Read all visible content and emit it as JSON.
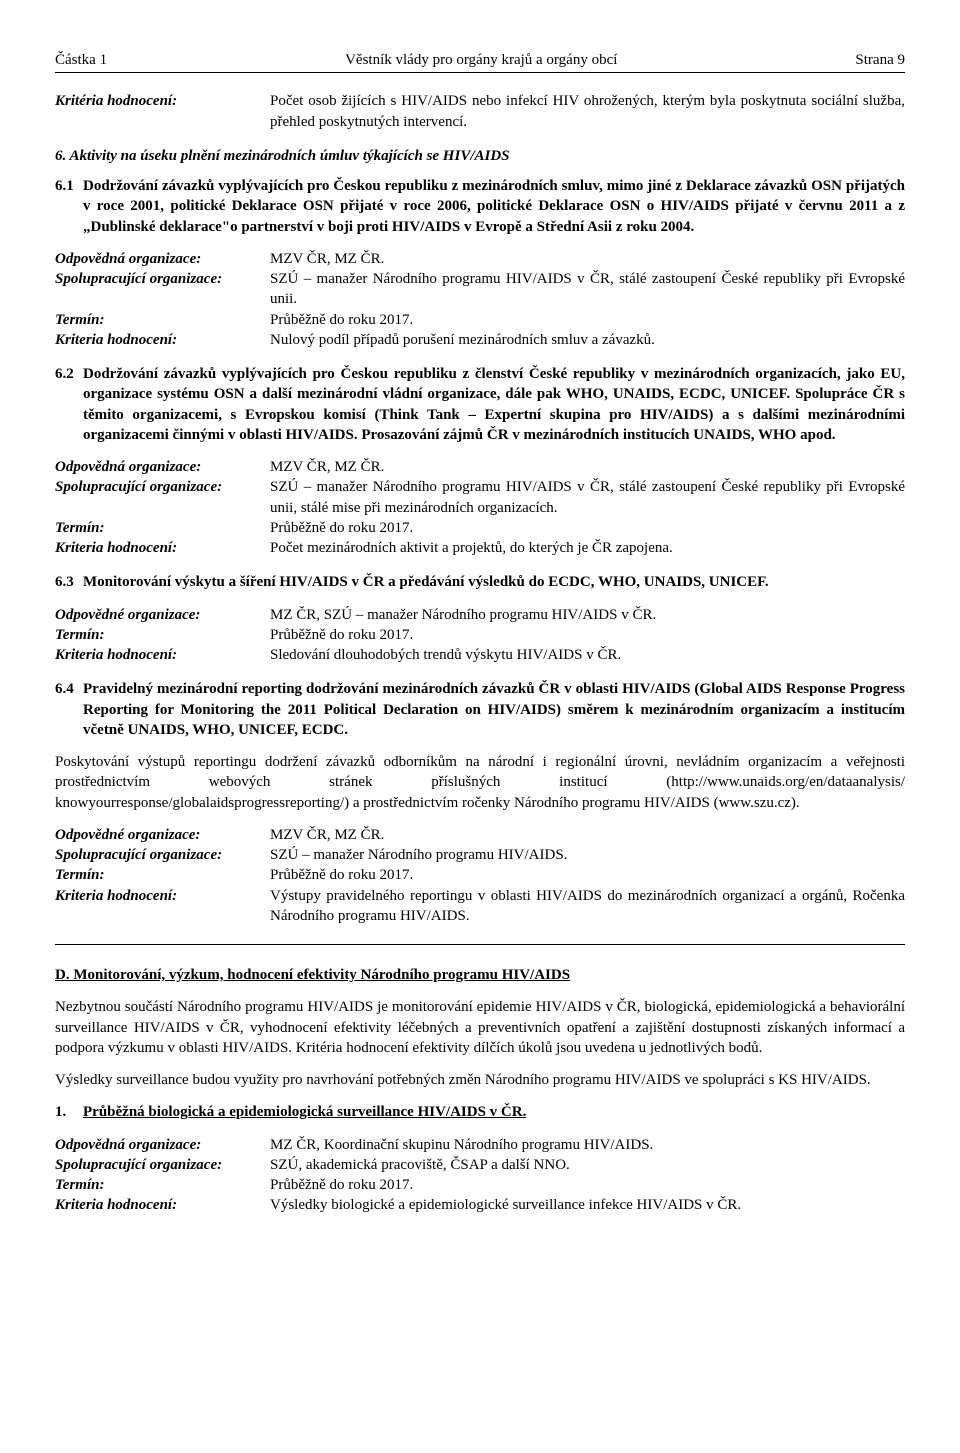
{
  "header": {
    "left": "Částka 1",
    "center": "Věstník vlády pro orgány krajů a orgány obcí",
    "right": "Strana 9"
  },
  "topKV": {
    "label": "Kritéria hodnocení:",
    "value": "Počet osob žijících s HIV/AIDS nebo infekcí HIV ohrožených, kterým byla poskytnuta sociální služba, přehled poskytnutých intervencí."
  },
  "sec6": {
    "title": "6. Aktivity na úseku plnění mezinárodních úmluv týkajících se HIV/AIDS"
  },
  "p61": {
    "num": "6.1",
    "text": "Dodržování závazků vyplývajících pro Českou republiku z mezinárodních smluv, mimo jiné z Deklarace závazků OSN přijatých v roce 2001, politické Deklarace OSN přijaté v roce 2006, politické Deklarace OSN o HIV/AIDS přijaté v červnu 2011 a z „Dublinské deklarace\"o partnerství v boji proti HIV/AIDS v Evropě a Střední Asii z roku 2004."
  },
  "kv61": {
    "r1l": "Odpovědná organizace:",
    "r1v": "MZV ČR, MZ ČR.",
    "r2l": "Spolupracující organizace:",
    "r2v": "SZÚ – manažer Národního programu HIV/AIDS v ČR, stálé zastoupení České republiky při Evropské unii.",
    "r3l": "Termín:",
    "r3v": "Průběžně do roku 2017.",
    "r4l": "Kriteria hodnocení:",
    "r4v": "Nulový podíl případů porušení mezinárodních smluv a závazků."
  },
  "p62": {
    "num": "6.2",
    "text": "Dodržování závazků vyplývajících pro Českou republiku z členství České republiky v mezinárodních organizacích, jako EU, organizace systému OSN a další mezinárodní vládní organizace, dále pak WHO, UNAIDS, ECDC, UNICEF. Spolupráce ČR s těmito organizacemi, s Evropskou komisí (Think Tank – Expertní skupina pro HIV/AIDS) a s dalšími mezinárodními organizacemi činnými v oblasti HIV/AIDS. Prosazování zájmů ČR v mezinárodních institucích UNAIDS, WHO apod."
  },
  "kv62": {
    "r1l": "Odpovědná organizace:",
    "r1v": "MZV ČR, MZ ČR.",
    "r2l": "Spolupracující organizace:",
    "r2v": "SZÚ – manažer Národního programu HIV/AIDS v ČR, stálé zastoupení České republiky při Evropské unii, stálé mise při mezinárodních organizacích.",
    "r3l": "Termín:",
    "r3v": "Průběžně do roku 2017.",
    "r4l": "Kriteria hodnocení:",
    "r4v": "Počet mezinárodních aktivit a projektů, do kterých je ČR zapojena."
  },
  "p63": {
    "num": "6.3",
    "text": "Monitorování výskytu a šíření HIV/AIDS v ČR a předávání výsledků do ECDC, WHO, UNAIDS, UNICEF."
  },
  "kv63": {
    "r1l": "Odpovědné organizace:",
    "r1v": "MZ ČR, SZÚ – manažer Národního programu HIV/AIDS v ČR.",
    "r2l": "Termín:",
    "r2v": "Průběžně do roku 2017.",
    "r3l": "Kriteria hodnocení:",
    "r3v": "Sledování dlouhodobých trendů výskytu HIV/AIDS v ČR."
  },
  "p64": {
    "num": "6.4",
    "text": "Pravidelný mezinárodní reporting dodržování mezinárodních závazků ČR v oblasti HIV/AIDS (Global AIDS Response Progress Reporting for Monitoring the 2011 Political Declaration on HIV/AIDS) směrem k mezinárodním organizacím a institucím včetně UNAIDS, WHO, UNICEF, ECDC."
  },
  "p64body": "Poskytování výstupů reportingu dodržení závazků odborníkům na národní i regionální úrovni, nevládním organizacím a veřejnosti prostřednictvím webových stránek příslušných institucí (http://www.unaids.org/en/dataanalysis/ knowyourresponse/globalaidsprogressreporting/) a prostřednictvím ročenky Národního programu HIV/AIDS (www.szu.cz).",
  "kv64": {
    "r1l": "Odpovědné organizace:",
    "r1v": "MZV ČR, MZ ČR.",
    "r2l": "Spolupracující organizace:",
    "r2v": "SZÚ – manažer Národního programu HIV/AIDS.",
    "r3l": "Termín:",
    "r3v": "Průběžně do roku 2017.",
    "r4l": "Kriteria hodnocení:",
    "r4v": "Výstupy pravidelného reportingu v oblasti HIV/AIDS do mezinárodních organizací a orgánů, Ročenka Národního programu HIV/AIDS."
  },
  "secD": {
    "title": "D. Monitorování, výzkum, hodnocení efektivity Národního programu HIV/AIDS",
    "body1": "Nezbytnou součástí Národního programu HIV/AIDS je monitorování epidemie HIV/AIDS v ČR, biologická, epidemiologická a behaviorální surveillance HIV/AIDS v ČR, vyhodnocení efektivity léčebných a preventivních opatření a zajištění dostupnosti získaných informací a podpora výzkumu v oblasti HIV/AIDS. Kritéria hodnocení efektivity dílčích úkolů jsou uvedena u jednotlivých bodů.",
    "body2": "Výsledky surveillance budou využity pro navrhování potřebných změn Národního programu HIV/AIDS ve spolupráci s KS HIV/AIDS."
  },
  "p1": {
    "num": "1.",
    "text": "Průběžná biologická a epidemiologická surveillance HIV/AIDS v ČR."
  },
  "kv1": {
    "r1l": "Odpovědná organizace:",
    "r1v": "MZ ČR, Koordinační skupinu Národního programu HIV/AIDS.",
    "r2l": "Spolupracující organizace:",
    "r2v": "SZÚ, akademická pracoviště, ČSAP a další NNO.",
    "r3l": "Termín:",
    "r3v": "Průběžně do roku 2017.",
    "r4l": "Kriteria hodnocení:",
    "r4v": "Výsledky biologické a epidemiologické surveillance infekce HIV/AIDS v ČR."
  }
}
